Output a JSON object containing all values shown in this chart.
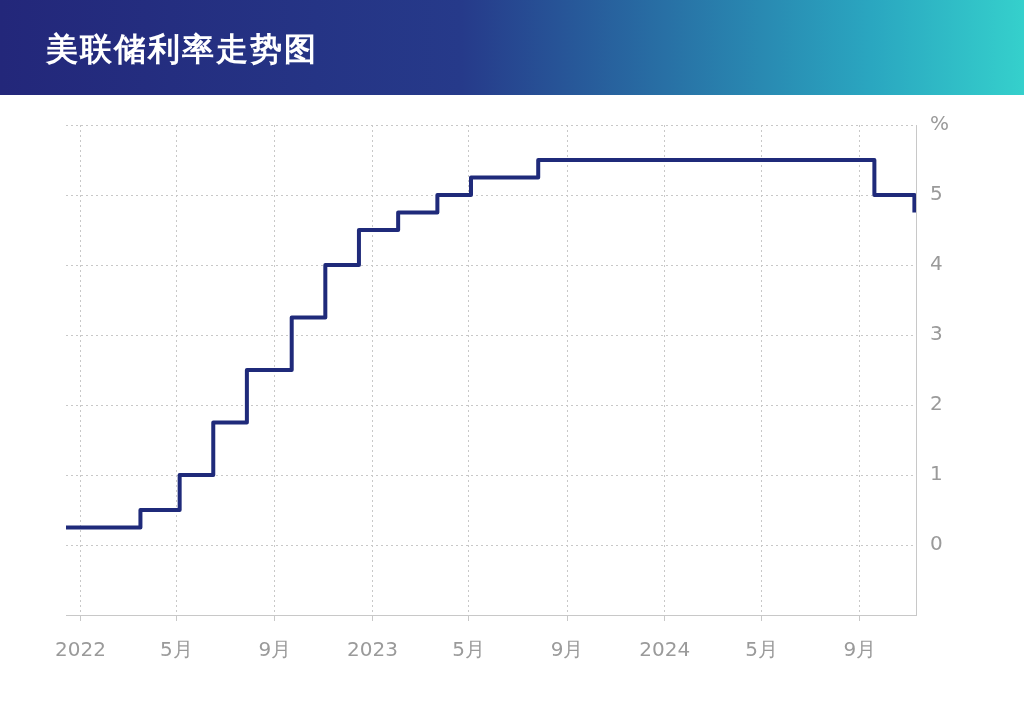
{
  "chart_data": {
    "type": "step",
    "title": "美联储利率走势图",
    "xlim": [
      "2021-12-14",
      "2024-11-10"
    ],
    "xticks": [
      {
        "value": "2022-01",
        "label": "2022"
      },
      {
        "value": "2022-05",
        "label": "5月"
      },
      {
        "value": "2022-09",
        "label": "9月"
      },
      {
        "value": "2023-01",
        "label": "2023"
      },
      {
        "value": "2023-05",
        "label": "5月"
      },
      {
        "value": "2023-09",
        "label": "9月"
      },
      {
        "value": "2024-01",
        "label": "2024"
      },
      {
        "value": "2024-05",
        "label": "5月"
      },
      {
        "value": "2024-09",
        "label": "9月"
      }
    ],
    "ylim": [
      -1,
      6
    ],
    "yticks": [
      {
        "value": -1,
        "label": null
      },
      0,
      1,
      2,
      3,
      4,
      5,
      {
        "value": 6,
        "label": "%"
      }
    ],
    "grid": true,
    "marker": "none",
    "line_style": "solid",
    "series": [
      {
        "color": "#1f2a7a",
        "x": [
          "2021-12-14",
          "2022-03-17",
          "2022-05-05",
          "2022-06-16",
          "2022-07-28",
          "2022-09-22",
          "2022-11-03",
          "2022-12-15",
          "2023-02-02",
          "2023-03-23",
          "2023-05-04",
          "2023-07-27",
          "2024-09-19",
          "2024-11-08"
        ],
        "values": [
          0.25,
          0.5,
          1.0,
          1.75,
          2.5,
          3.25,
          4.0,
          4.5,
          4.75,
          5.0,
          5.25,
          5.5,
          5.0,
          4.75
        ]
      }
    ]
  }
}
